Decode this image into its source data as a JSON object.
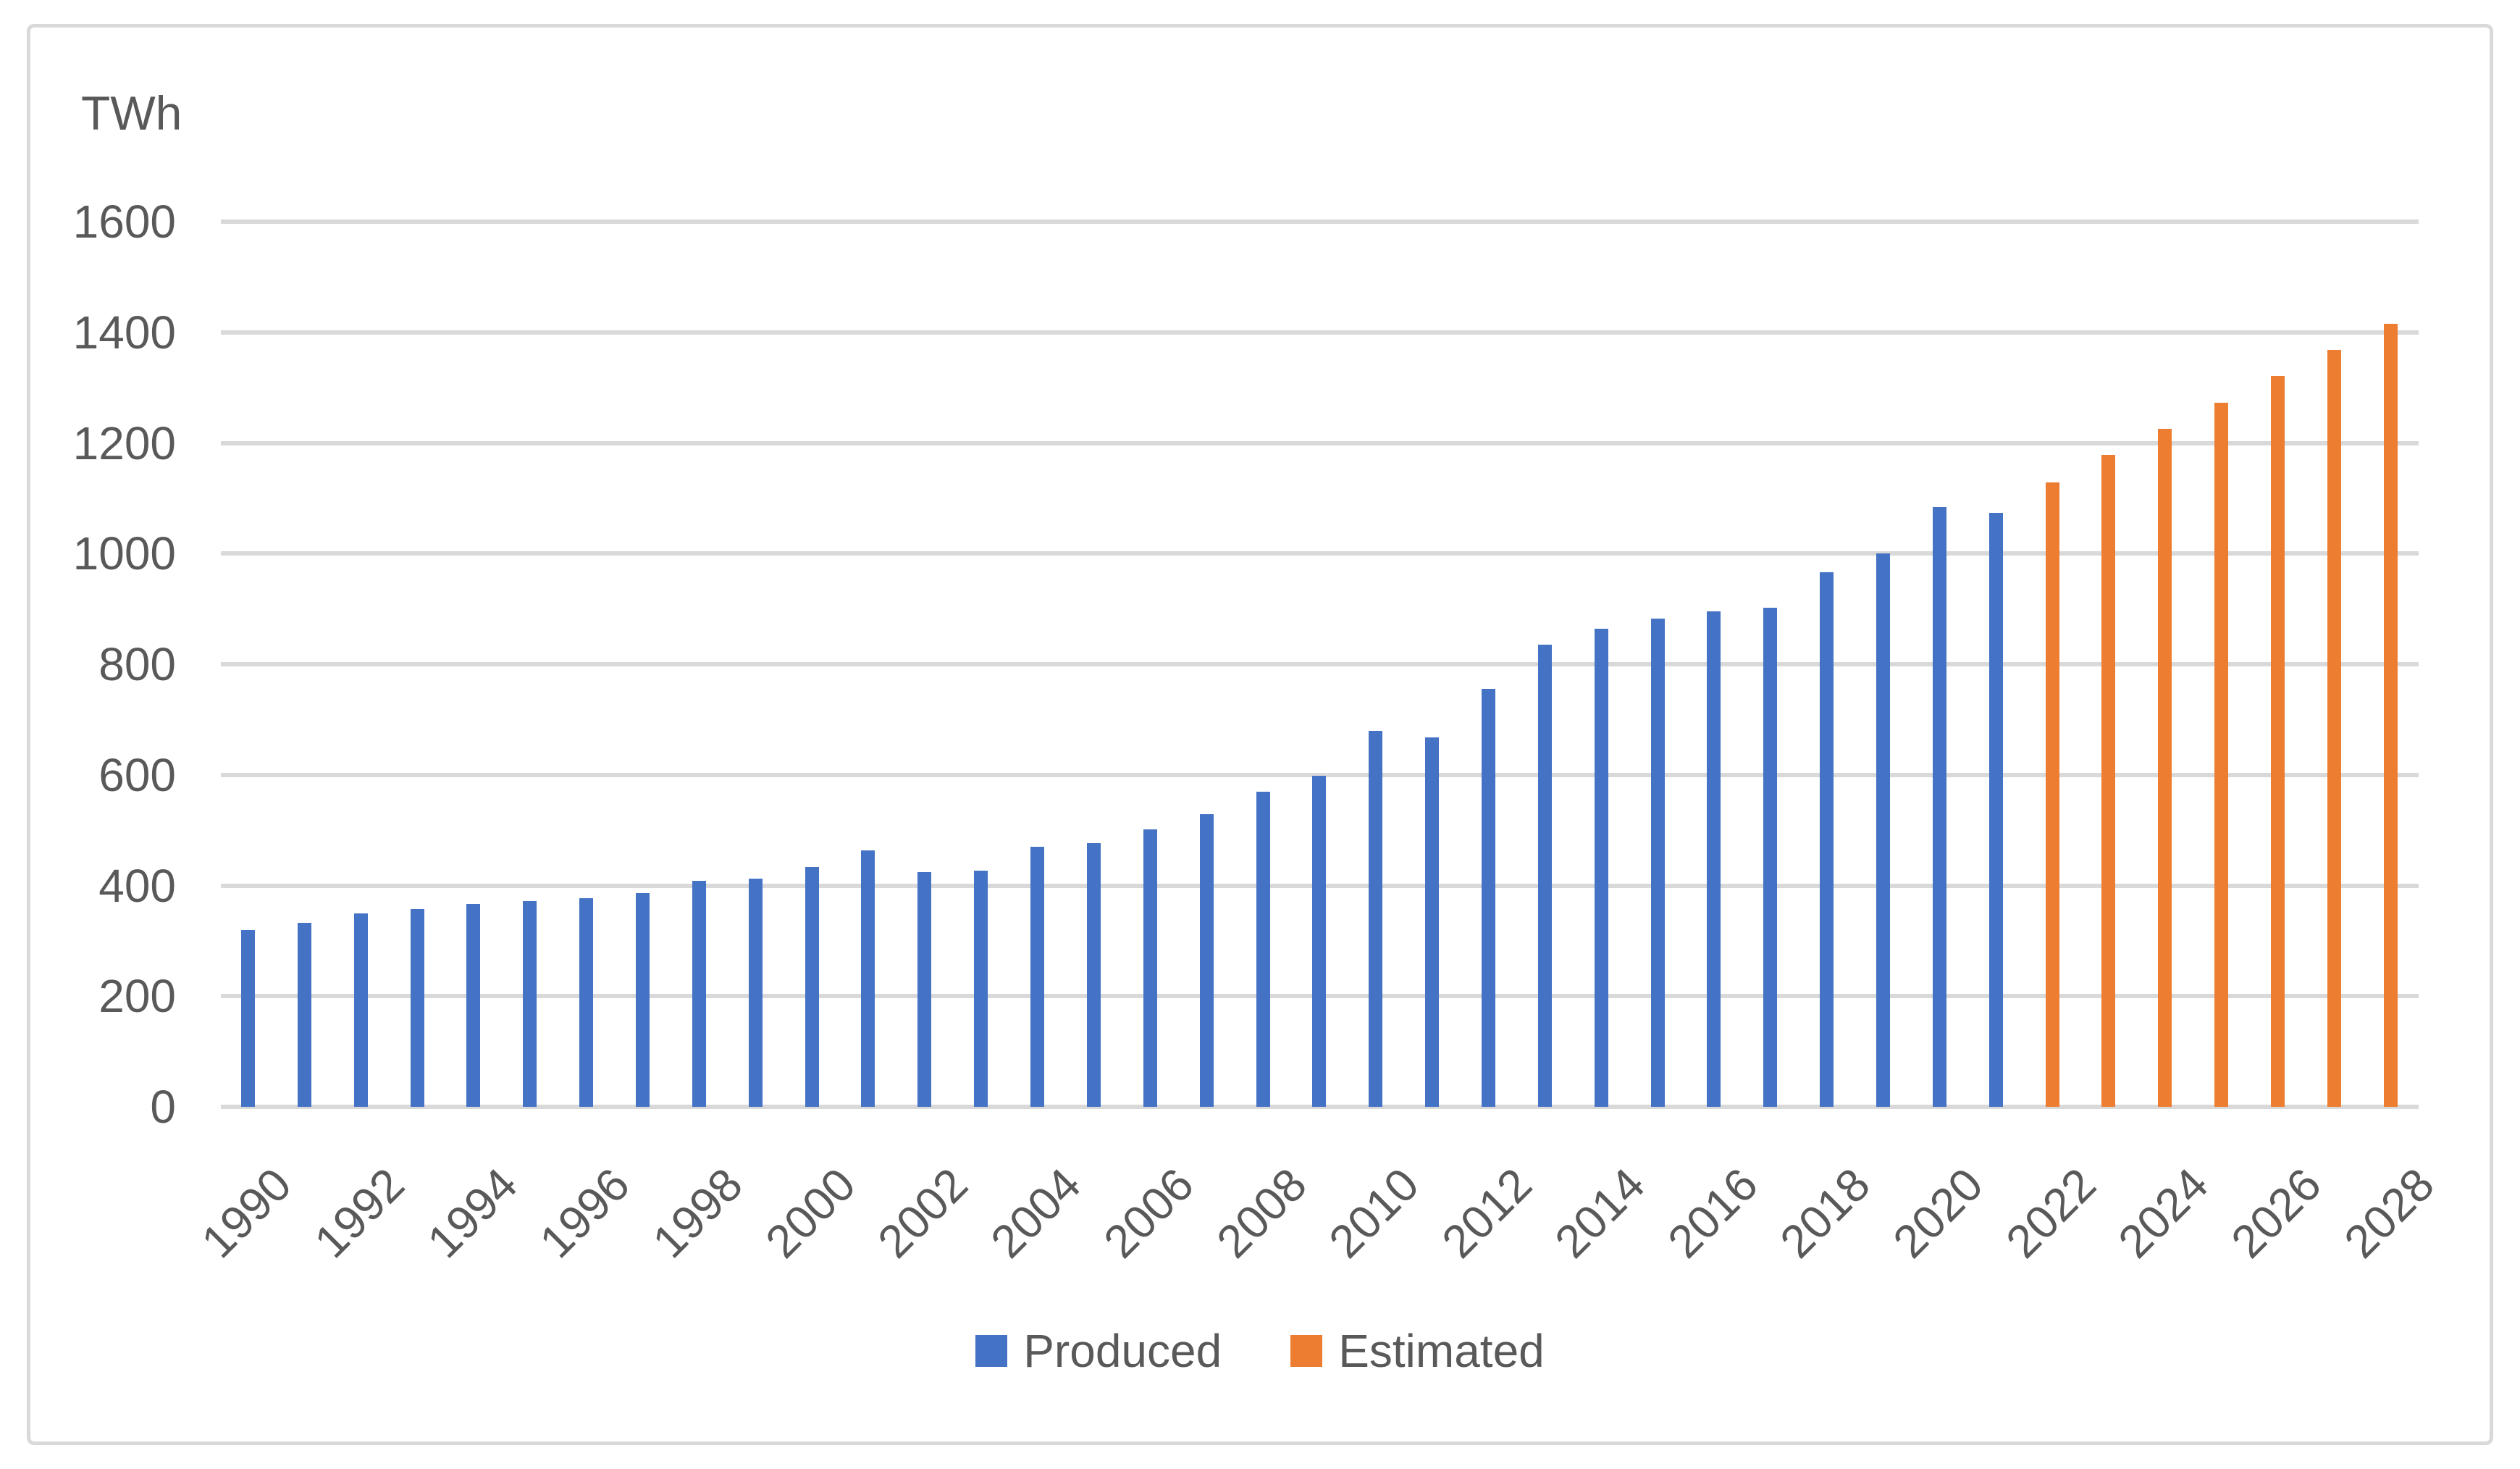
{
  "chart": {
    "unit_label": "TWh",
    "legend": [
      {
        "label": "Produced",
        "color": "#4472C4"
      },
      {
        "label": "Estimated",
        "color": "#ED7D31"
      }
    ],
    "colors": {
      "produced": "#4472C4",
      "estimated": "#ED7D31",
      "gridline": "#D9D9D9",
      "text": "#595959",
      "frame_border": "#D9D9D9"
    }
  },
  "chart_data": {
    "type": "bar",
    "title": "",
    "ylabel": "TWh",
    "xlabel": "",
    "ylim": [
      0,
      1600
    ],
    "ytick_step": 200,
    "yticks": [
      0,
      200,
      400,
      600,
      800,
      1000,
      1200,
      1400,
      1600
    ],
    "grid": true,
    "legend_position": "bottom",
    "x_range": [
      1990,
      2028
    ],
    "x_tick_labels": [
      "1990",
      "1992",
      "1994",
      "1996",
      "1998",
      "2000",
      "2002",
      "2004",
      "2006",
      "2008",
      "2010",
      "2012",
      "2014",
      "2016",
      "2018",
      "2020",
      "2022",
      "2024",
      "2026",
      "2028"
    ],
    "series": [
      {
        "name": "Produced",
        "color": "#4472C4",
        "start_year": 1990,
        "values": [
          320,
          333,
          349,
          357,
          367,
          372,
          377,
          386,
          408,
          412,
          434,
          463,
          424,
          427,
          470,
          476,
          501,
          529,
          569,
          599,
          680,
          668,
          755,
          835,
          864,
          882,
          896,
          902,
          966,
          1000,
          1084,
          1074
        ]
      },
      {
        "name": "Estimated",
        "color": "#ED7D31",
        "start_year": 2022,
        "values": [
          1129,
          1178,
          1226,
          1273,
          1321,
          1368,
          1416
        ]
      }
    ]
  }
}
